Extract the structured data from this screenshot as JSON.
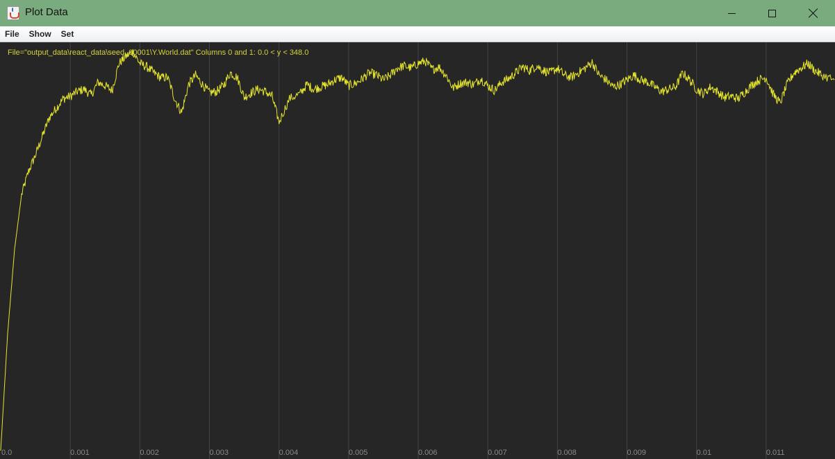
{
  "window": {
    "title": "Plot Data",
    "icon": "java-cup-icon",
    "minimize_icon": "minimize-icon",
    "maximize_icon": "maximize-icon",
    "close_icon": "close-icon"
  },
  "menu": {
    "items": [
      {
        "label": "File"
      },
      {
        "label": "Show"
      },
      {
        "label": "Set"
      }
    ]
  },
  "chart_data": {
    "type": "line",
    "title": "File=\"output_data\\react_data\\seed_00001\\Y.World.dat\" Columns 0 and 1: 0.0 < y < 348.0",
    "xlabel": "",
    "ylabel": "",
    "xlim": [
      0.0,
      0.01198
    ],
    "ylim": [
      0.0,
      348.0
    ],
    "grid": "vertical",
    "colors": {
      "background": "#262626",
      "line": "#e6e62e",
      "grid": "#444444",
      "ticks": "#8a8a8a",
      "title": "#d7d23a"
    },
    "x_ticks": [
      "0.0",
      "0.001",
      "0.002",
      "0.003",
      "0.004",
      "0.005",
      "0.006",
      "0.007",
      "0.008",
      "0.009",
      "0.01",
      "0.011"
    ],
    "x_tick_values": [
      0.0,
      0.001,
      0.002,
      0.003,
      0.004,
      0.005,
      0.006,
      0.007,
      0.008,
      0.009,
      0.01,
      0.011
    ],
    "series": [
      {
        "x": [
          0.0,
          0.0001,
          0.0002,
          0.0003,
          0.0004,
          0.0005,
          0.0006,
          0.0007,
          0.0008,
          0.0009,
          0.001,
          0.0011,
          0.0012,
          0.0013,
          0.0014,
          0.0015,
          0.0016,
          0.0017,
          0.0018,
          0.0019,
          0.002,
          0.0021,
          0.0022,
          0.0023,
          0.0024,
          0.0025,
          0.0026,
          0.0027,
          0.0028,
          0.0029,
          0.003,
          0.0031,
          0.0032,
          0.0033,
          0.0034,
          0.0035,
          0.0036,
          0.0037,
          0.0038,
          0.0039,
          0.004,
          0.00415,
          0.0043,
          0.0044,
          0.0045,
          0.0046,
          0.0047,
          0.0048,
          0.0049,
          0.005,
          0.0051,
          0.0052,
          0.0053,
          0.0054,
          0.0055,
          0.0056,
          0.0057,
          0.0058,
          0.0059,
          0.006,
          0.0061,
          0.0062,
          0.0063,
          0.0064,
          0.0065,
          0.0066,
          0.0067,
          0.0068,
          0.0069,
          0.007,
          0.0071,
          0.0072,
          0.0073,
          0.0074,
          0.0075,
          0.0076,
          0.0077,
          0.0078,
          0.0079,
          0.008,
          0.0081,
          0.0082,
          0.0083,
          0.0084,
          0.0085,
          0.0086,
          0.0087,
          0.0088,
          0.0089,
          0.009,
          0.0091,
          0.0092,
          0.0093,
          0.0094,
          0.0095,
          0.0096,
          0.0097,
          0.0098,
          0.0099,
          0.01,
          0.0101,
          0.0102,
          0.0103,
          0.0104,
          0.0105,
          0.0106,
          0.0107,
          0.0108,
          0.0109,
          0.011,
          0.0111,
          0.0112,
          0.0113,
          0.0114,
          0.0115,
          0.0116,
          0.0117,
          0.0118,
          0.01198
        ],
        "y": [
          0,
          100,
          172,
          218,
          238,
          252,
          268,
          284,
          292,
          300,
          302,
          306,
          308,
          303,
          314,
          311,
          307,
          330,
          336,
          340,
          330,
          327,
          322,
          318,
          318,
          300,
          288,
          312,
          320,
          312,
          305,
          306,
          311,
          322,
          318,
          301,
          305,
          308,
          306,
          302,
          280,
          300,
          304,
          312,
          308,
          310,
          312,
          316,
          318,
          311,
          313,
          317,
          322,
          320,
          316,
          320,
          326,
          328,
          326,
          330,
          332,
          325,
          327,
          320,
          309,
          313,
          314,
          312,
          317,
          311,
          307,
          314,
          317,
          322,
          327,
          324,
          328,
          324,
          322,
          326,
          320,
          318,
          322,
          326,
          331,
          320,
          316,
          310,
          312,
          316,
          320,
          316,
          314,
          310,
          306,
          308,
          310,
          322,
          316,
          308,
          304,
          310,
          306,
          301,
          302,
          300,
          306,
          312,
          316,
          318,
          304,
          296,
          312,
          322,
          326,
          330,
          324,
          320,
          316
        ]
      }
    ]
  }
}
